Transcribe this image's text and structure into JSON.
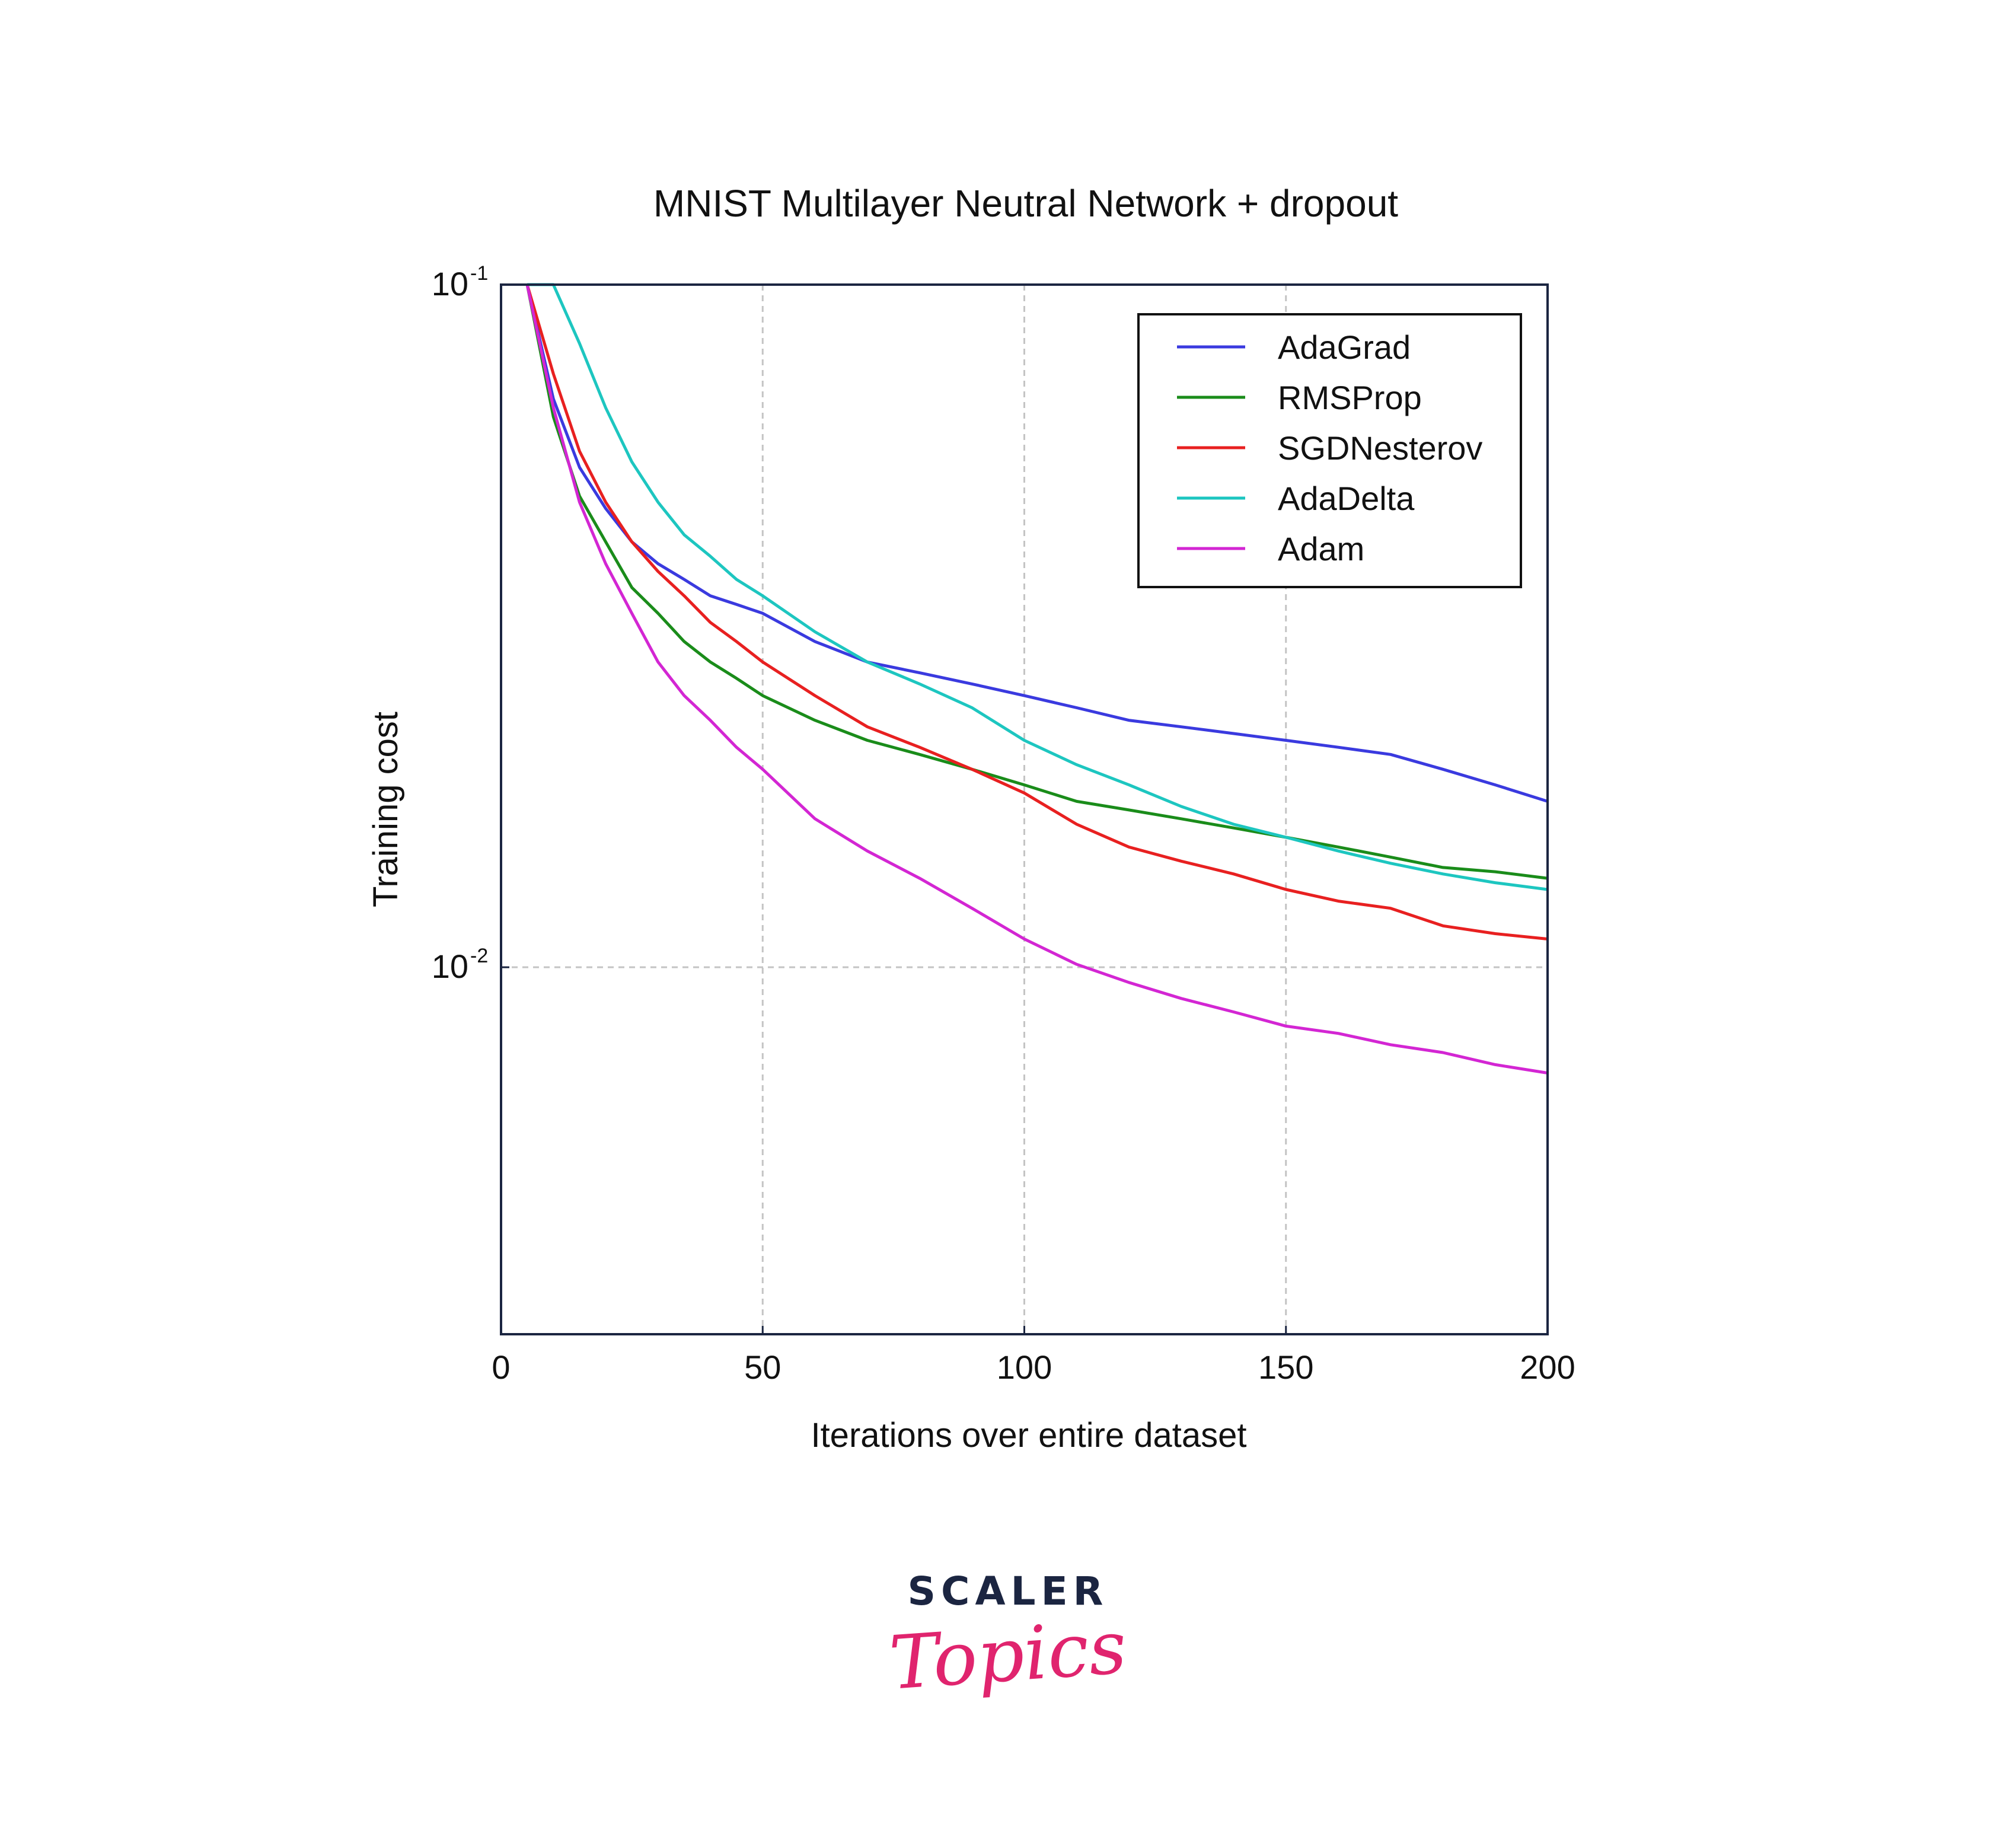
{
  "chart_data": {
    "type": "line",
    "title": "MNIST Multilayer Neutral Network + dropout",
    "xlabel": "Iterations over entire dataset",
    "ylabel": "Training cost",
    "xlim": [
      0,
      200
    ],
    "ylim": [
      0.0029,
      0.1
    ],
    "yscale": "log",
    "xticks": [
      0,
      50,
      100,
      150,
      200
    ],
    "xtick_labels": [
      "0",
      "50",
      "100",
      "150",
      "200"
    ],
    "yticks": [
      0.1,
      0.01
    ],
    "ytick_labels": [
      {
        "base": "10",
        "exp": "-1"
      },
      {
        "base": "10",
        "exp": "-2"
      }
    ],
    "grid": true,
    "legend_position": "top-right",
    "x": [
      5,
      10,
      15,
      20,
      25,
      30,
      35,
      40,
      45,
      50,
      60,
      70,
      80,
      90,
      100,
      110,
      120,
      130,
      140,
      150,
      160,
      170,
      180,
      190,
      200
    ],
    "series": [
      {
        "name": "AdaGrad",
        "color": "#3a3adf",
        "values": [
          0.1,
          0.068,
          0.054,
          0.047,
          0.042,
          0.039,
          0.037,
          0.035,
          0.034,
          0.033,
          0.03,
          0.028,
          0.027,
          0.026,
          0.025,
          0.024,
          0.023,
          0.0225,
          0.022,
          0.0215,
          0.021,
          0.0205,
          0.0195,
          0.0185,
          0.0175
        ]
      },
      {
        "name": "RMSProp",
        "color": "#1a8c1a",
        "values": [
          0.1,
          0.064,
          0.049,
          0.042,
          0.036,
          0.033,
          0.03,
          0.028,
          0.0265,
          0.025,
          0.023,
          0.0215,
          0.0205,
          0.0195,
          0.0185,
          0.0175,
          0.017,
          0.0165,
          0.016,
          0.0155,
          0.015,
          0.0145,
          0.014,
          0.0138,
          0.0135
        ]
      },
      {
        "name": "SGDNesterov",
        "color": "#e82020",
        "values": [
          0.1,
          0.074,
          0.057,
          0.048,
          0.042,
          0.038,
          0.035,
          0.032,
          0.03,
          0.028,
          0.025,
          0.0225,
          0.021,
          0.0195,
          0.018,
          0.0162,
          0.015,
          0.0143,
          0.0137,
          0.013,
          0.0125,
          0.0122,
          0.0115,
          0.0112,
          0.011
        ]
      },
      {
        "name": "AdaDelta",
        "color": "#1dc6c0",
        "values": [
          0.1,
          0.1,
          0.082,
          0.066,
          0.055,
          0.048,
          0.043,
          0.04,
          0.037,
          0.035,
          0.031,
          0.028,
          0.026,
          0.024,
          0.0215,
          0.0198,
          0.0185,
          0.0172,
          0.0162,
          0.0155,
          0.0148,
          0.0142,
          0.0137,
          0.0133,
          0.013
        ]
      },
      {
        "name": "Adam",
        "color": "#d326d3",
        "values": [
          0.1,
          0.066,
          0.048,
          0.039,
          0.033,
          0.028,
          0.025,
          0.023,
          0.021,
          0.0195,
          0.0165,
          0.0148,
          0.0135,
          0.0122,
          0.011,
          0.0101,
          0.0095,
          0.009,
          0.0086,
          0.0082,
          0.008,
          0.0077,
          0.0075,
          0.0072,
          0.007
        ]
      }
    ]
  },
  "brand": {
    "name": "SCALER",
    "sub": "Topics"
  }
}
